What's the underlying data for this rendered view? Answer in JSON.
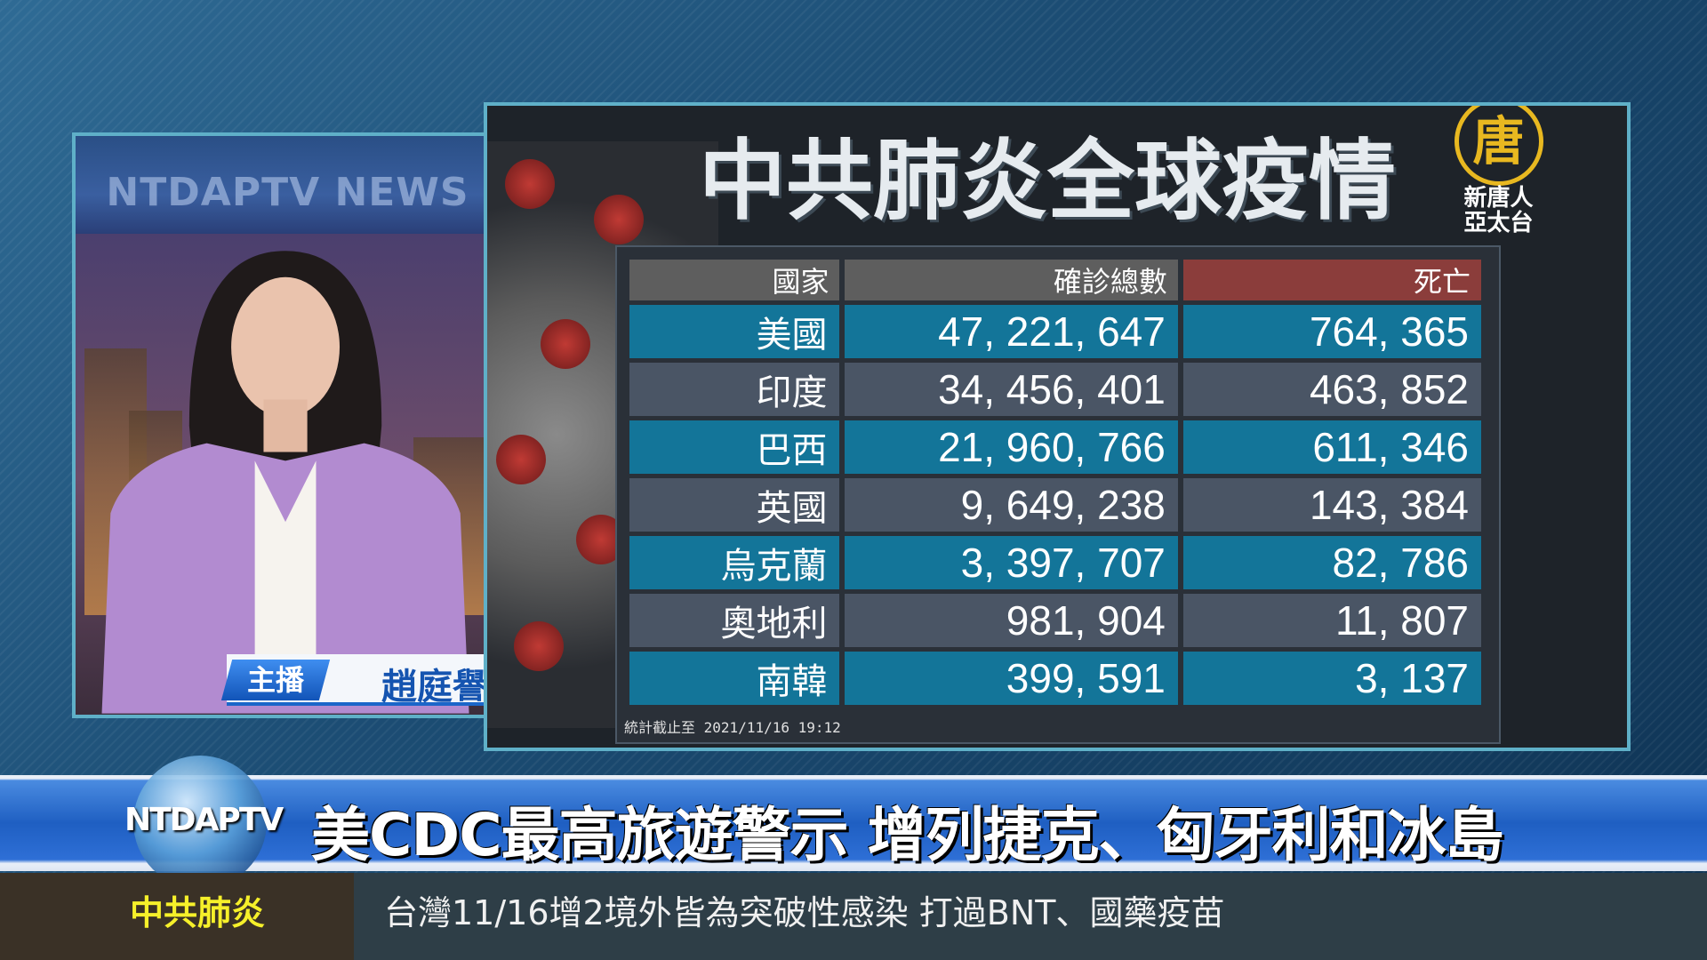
{
  "anchor": {
    "studio_logo": "NTDAPTV NEWS",
    "role": "主播",
    "name": "趙庭譽"
  },
  "graphic": {
    "title": "中共肺炎全球疫情",
    "logo": {
      "glyph": "唐",
      "line1": "新唐人",
      "line2": "亞太台"
    },
    "table": {
      "headers": [
        "國家",
        "確診總數",
        "死亡"
      ],
      "rows": [
        {
          "country": "美國",
          "confirmed": "47, 221, 647",
          "deaths": "764, 365"
        },
        {
          "country": "印度",
          "confirmed": "34, 456, 401",
          "deaths": "463, 852"
        },
        {
          "country": "巴西",
          "confirmed": "21, 960, 766",
          "deaths": "611, 346"
        },
        {
          "country": "英國",
          "confirmed": "9, 649, 238",
          "deaths": "143, 384"
        },
        {
          "country": "烏克蘭",
          "confirmed": "3, 397, 707",
          "deaths": "82, 786"
        },
        {
          "country": "奧地利",
          "confirmed": "981, 904",
          "deaths": "11, 807"
        },
        {
          "country": "南韓",
          "confirmed": "399, 591",
          "deaths": "3, 137"
        }
      ],
      "as_of_label": "統計截止至",
      "as_of": "2021/11/16 19:12"
    }
  },
  "headline": {
    "channel_logo": "NTDAPTV",
    "text": "美CDC最高旅遊警示  增列捷克、匈牙利和冰島"
  },
  "ticker": {
    "label": "中共肺炎",
    "text": "台灣11/16增2境外皆為突破性感染  打過BNT、國藥疫苗"
  },
  "colors": {
    "row_blue": "#137599",
    "row_gray": "#4a5565",
    "death_header": "#8b3d3b",
    "ticker_label": "#f6f02a"
  }
}
